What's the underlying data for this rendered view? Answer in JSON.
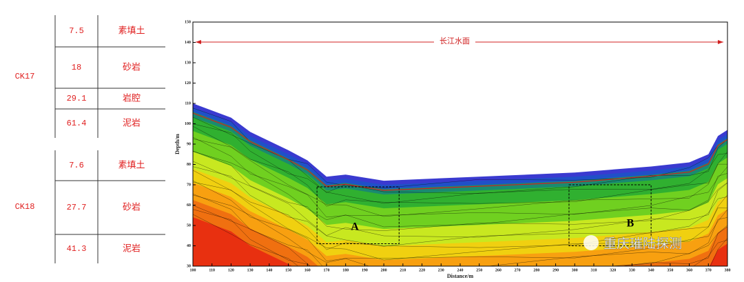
{
  "boreholes": [
    {
      "name": "CK17",
      "layers": [
        {
          "thickness": "7.5",
          "lithology": "素填土"
        },
        {
          "thickness": "18",
          "lithology": "砂岩"
        },
        {
          "thickness": "29.1",
          "lithology": "岩腔"
        },
        {
          "thickness": "61.4",
          "lithology": "泥岩"
        }
      ]
    },
    {
      "name": "CK18",
      "layers": [
        {
          "thickness": "7.6",
          "lithology": "素填土"
        },
        {
          "thickness": "27.7",
          "lithology": "砂岩"
        },
        {
          "thickness": "41.3",
          "lithology": "泥岩"
        }
      ]
    }
  ],
  "chart_data": {
    "type": "contour",
    "xlabel": "Distance/m",
    "ylabel": "Depth/m",
    "xlim": [
      100,
      380
    ],
    "ylim": [
      30,
      150
    ],
    "xticks": [
      100,
      110,
      120,
      130,
      140,
      150,
      160,
      170,
      180,
      190,
      200,
      210,
      220,
      230,
      240,
      250,
      260,
      270,
      280,
      290,
      300,
      310,
      320,
      330,
      340,
      350,
      360,
      370,
      380
    ],
    "yticks": [
      30,
      40,
      50,
      60,
      70,
      80,
      90,
      100,
      110,
      120,
      130,
      140,
      150
    ],
    "annotations": {
      "water": "长江水面",
      "a": "A",
      "b": "B"
    }
  },
  "watermark": "重庆璀陆探测"
}
